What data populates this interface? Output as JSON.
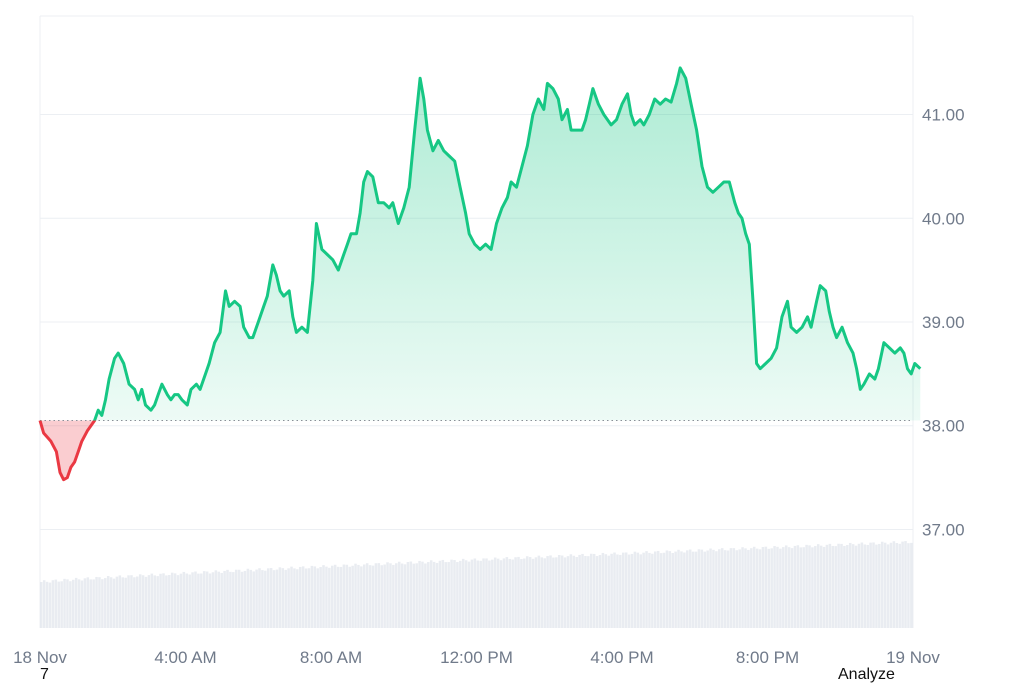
{
  "chart_data": {
    "type": "line",
    "baseline": 38.05,
    "ylim": [
      36.05,
      41.95
    ],
    "xlim_hours": [
      0,
      24
    ],
    "y_ticks": [
      "37.00",
      "38.00",
      "39.00",
      "40.00",
      "41.00"
    ],
    "x_ticks": [
      {
        "label": "18 Nov",
        "hour": 0
      },
      {
        "label": "4:00 AM",
        "hour": 4
      },
      {
        "label": "8:00 AM",
        "hour": 8
      },
      {
        "label": "12:00 PM",
        "hour": 12
      },
      {
        "label": "4:00 PM",
        "hour": 16
      },
      {
        "label": "8:00 PM",
        "hour": 20
      },
      {
        "label": "19 Nov",
        "hour": 24
      }
    ],
    "series": [
      {
        "points": [
          [
            0.0,
            38.05
          ],
          [
            0.1,
            37.93
          ],
          [
            0.3,
            37.85
          ],
          [
            0.45,
            37.75
          ],
          [
            0.55,
            37.55
          ],
          [
            0.65,
            37.48
          ],
          [
            0.75,
            37.5
          ],
          [
            0.85,
            37.6
          ],
          [
            0.95,
            37.65
          ],
          [
            1.05,
            37.75
          ],
          [
            1.15,
            37.85
          ],
          [
            1.3,
            37.95
          ],
          [
            1.5,
            38.05
          ],
          [
            1.6,
            38.15
          ],
          [
            1.7,
            38.1
          ],
          [
            1.8,
            38.25
          ],
          [
            1.9,
            38.45
          ],
          [
            2.05,
            38.65
          ],
          [
            2.15,
            38.7
          ],
          [
            2.3,
            38.6
          ],
          [
            2.45,
            38.4
          ],
          [
            2.6,
            38.35
          ],
          [
            2.7,
            38.25
          ],
          [
            2.8,
            38.35
          ],
          [
            2.9,
            38.2
          ],
          [
            3.05,
            38.15
          ],
          [
            3.15,
            38.2
          ],
          [
            3.25,
            38.3
          ],
          [
            3.35,
            38.4
          ],
          [
            3.5,
            38.3
          ],
          [
            3.6,
            38.25
          ],
          [
            3.7,
            38.3
          ],
          [
            3.8,
            38.3
          ],
          [
            3.9,
            38.25
          ],
          [
            4.05,
            38.2
          ],
          [
            4.15,
            38.35
          ],
          [
            4.3,
            38.4
          ],
          [
            4.4,
            38.35
          ],
          [
            4.55,
            38.5
          ],
          [
            4.65,
            38.6
          ],
          [
            4.8,
            38.8
          ],
          [
            4.95,
            38.9
          ],
          [
            5.1,
            39.3
          ],
          [
            5.2,
            39.15
          ],
          [
            5.35,
            39.2
          ],
          [
            5.5,
            39.15
          ],
          [
            5.6,
            38.95
          ],
          [
            5.75,
            38.85
          ],
          [
            5.85,
            38.85
          ],
          [
            6.0,
            39.0
          ],
          [
            6.15,
            39.15
          ],
          [
            6.25,
            39.25
          ],
          [
            6.4,
            39.55
          ],
          [
            6.5,
            39.45
          ],
          [
            6.6,
            39.3
          ],
          [
            6.7,
            39.25
          ],
          [
            6.85,
            39.3
          ],
          [
            6.95,
            39.05
          ],
          [
            7.05,
            38.9
          ],
          [
            7.2,
            38.95
          ],
          [
            7.35,
            38.9
          ],
          [
            7.5,
            39.4
          ],
          [
            7.6,
            39.95
          ],
          [
            7.75,
            39.7
          ],
          [
            7.9,
            39.65
          ],
          [
            8.05,
            39.6
          ],
          [
            8.2,
            39.5
          ],
          [
            8.35,
            39.65
          ],
          [
            8.45,
            39.75
          ],
          [
            8.55,
            39.85
          ],
          [
            8.7,
            39.85
          ],
          [
            8.8,
            40.05
          ],
          [
            8.9,
            40.35
          ],
          [
            9.0,
            40.45
          ],
          [
            9.15,
            40.4
          ],
          [
            9.3,
            40.15
          ],
          [
            9.45,
            40.15
          ],
          [
            9.6,
            40.1
          ],
          [
            9.7,
            40.15
          ],
          [
            9.85,
            39.95
          ],
          [
            10.0,
            40.1
          ],
          [
            10.15,
            40.3
          ],
          [
            10.3,
            40.85
          ],
          [
            10.45,
            41.35
          ],
          [
            10.55,
            41.15
          ],
          [
            10.65,
            40.85
          ],
          [
            10.8,
            40.65
          ],
          [
            10.95,
            40.75
          ],
          [
            11.1,
            40.65
          ],
          [
            11.25,
            40.6
          ],
          [
            11.4,
            40.55
          ],
          [
            11.55,
            40.3
          ],
          [
            11.7,
            40.05
          ],
          [
            11.8,
            39.85
          ],
          [
            11.95,
            39.75
          ],
          [
            12.1,
            39.7
          ],
          [
            12.25,
            39.75
          ],
          [
            12.4,
            39.7
          ],
          [
            12.55,
            39.95
          ],
          [
            12.7,
            40.1
          ],
          [
            12.85,
            40.2
          ],
          [
            12.95,
            40.35
          ],
          [
            13.1,
            40.3
          ],
          [
            13.25,
            40.5
          ],
          [
            13.4,
            40.7
          ],
          [
            13.55,
            41.0
          ],
          [
            13.7,
            41.15
          ],
          [
            13.85,
            41.05
          ],
          [
            13.95,
            41.3
          ],
          [
            14.1,
            41.25
          ],
          [
            14.25,
            41.15
          ],
          [
            14.35,
            40.95
          ],
          [
            14.5,
            41.05
          ],
          [
            14.6,
            40.85
          ],
          [
            14.75,
            40.85
          ],
          [
            14.9,
            40.85
          ],
          [
            15.0,
            40.95
          ],
          [
            15.1,
            41.1
          ],
          [
            15.2,
            41.25
          ],
          [
            15.35,
            41.1
          ],
          [
            15.5,
            41.0
          ],
          [
            15.6,
            40.95
          ],
          [
            15.7,
            40.9
          ],
          [
            15.85,
            40.95
          ],
          [
            16.0,
            41.1
          ],
          [
            16.15,
            41.2
          ],
          [
            16.25,
            41.0
          ],
          [
            16.35,
            40.9
          ],
          [
            16.5,
            40.95
          ],
          [
            16.6,
            40.9
          ],
          [
            16.75,
            41.0
          ],
          [
            16.9,
            41.15
          ],
          [
            17.05,
            41.1
          ],
          [
            17.2,
            41.15
          ],
          [
            17.35,
            41.12
          ],
          [
            17.5,
            41.3
          ],
          [
            17.6,
            41.45
          ],
          [
            17.75,
            41.35
          ],
          [
            17.9,
            41.1
          ],
          [
            18.05,
            40.85
          ],
          [
            18.2,
            40.5
          ],
          [
            18.35,
            40.3
          ],
          [
            18.5,
            40.25
          ],
          [
            18.65,
            40.3
          ],
          [
            18.8,
            40.35
          ],
          [
            18.95,
            40.35
          ],
          [
            19.1,
            40.15
          ],
          [
            19.2,
            40.05
          ],
          [
            19.3,
            40.0
          ],
          [
            19.4,
            39.85
          ],
          [
            19.5,
            39.75
          ],
          [
            19.6,
            39.2
          ],
          [
            19.7,
            38.6
          ],
          [
            19.8,
            38.55
          ],
          [
            19.95,
            38.6
          ],
          [
            20.1,
            38.65
          ],
          [
            20.25,
            38.75
          ],
          [
            20.4,
            39.05
          ],
          [
            20.55,
            39.2
          ],
          [
            20.65,
            38.95
          ],
          [
            20.8,
            38.9
          ],
          [
            20.95,
            38.95
          ],
          [
            21.1,
            39.05
          ],
          [
            21.2,
            38.95
          ],
          [
            21.35,
            39.2
          ],
          [
            21.45,
            39.35
          ],
          [
            21.6,
            39.3
          ],
          [
            21.7,
            39.1
          ],
          [
            21.8,
            38.95
          ],
          [
            21.9,
            38.85
          ],
          [
            22.05,
            38.95
          ],
          [
            22.2,
            38.8
          ],
          [
            22.35,
            38.7
          ],
          [
            22.45,
            38.55
          ],
          [
            22.55,
            38.35
          ],
          [
            22.65,
            38.4
          ],
          [
            22.8,
            38.5
          ],
          [
            22.95,
            38.45
          ],
          [
            23.05,
            38.55
          ],
          [
            23.2,
            38.8
          ],
          [
            23.35,
            38.75
          ],
          [
            23.5,
            38.7
          ],
          [
            23.65,
            38.75
          ],
          [
            23.75,
            38.7
          ],
          [
            23.85,
            38.55
          ],
          [
            23.95,
            38.5
          ],
          [
            24.05,
            38.6
          ],
          [
            24.2,
            38.55
          ]
        ]
      }
    ],
    "colors": {
      "up": "#16c784",
      "down": "#ea3943",
      "grid": "#eceff3",
      "volume": "#dfe4eb"
    }
  },
  "footer": {
    "left_text": "7",
    "right_text": "Analyze"
  }
}
